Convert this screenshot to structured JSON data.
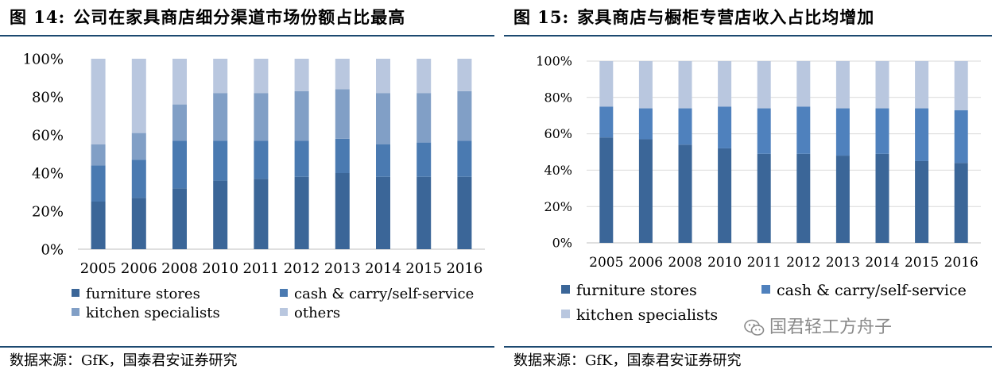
{
  "figures": [
    {
      "number": "图 14:",
      "title": "公司在家具商店细分渠道市场份额占比最高",
      "source": "数据来源：GfK，国泰君安证券研究"
    },
    {
      "number": "图 15:",
      "title": "家具商店与橱柜专营店收入占比均增加",
      "source": "数据来源：GfK，国泰君安证券研究"
    }
  ],
  "watermark": {
    "text": "国君轻工方舟子",
    "icon": "wechat-icon"
  },
  "chart_data": [
    {
      "type": "bar",
      "stacked": true,
      "categories": [
        "2005",
        "2006",
        "2008",
        "2010",
        "2011",
        "2012",
        "2013",
        "2014",
        "2015",
        "2016"
      ],
      "ylim": [
        0,
        100
      ],
      "yticks": [
        "0%",
        "20%",
        "40%",
        "60%",
        "80%",
        "100%"
      ],
      "grid": false,
      "legend": "bottom",
      "series": [
        {
          "name": "furniture stores",
          "color": "#3b6698",
          "values": [
            25,
            27,
            32,
            36,
            37,
            38,
            40,
            38,
            38,
            38
          ]
        },
        {
          "name": "cash & carry/self-service",
          "color": "#4a7ab1",
          "values": [
            19,
            20,
            25,
            21,
            20,
            19,
            18,
            17,
            18,
            19
          ]
        },
        {
          "name": "kitchen specialists",
          "color": "#819fc6",
          "values": [
            11,
            14,
            19,
            25,
            25,
            26,
            26,
            27,
            26,
            26
          ]
        },
        {
          "name": "others",
          "color": "#b9c7df",
          "values": [
            45,
            39,
            24,
            18,
            18,
            17,
            16,
            18,
            18,
            17
          ]
        }
      ]
    },
    {
      "type": "bar",
      "stacked": true,
      "categories": [
        "2005",
        "2006",
        "2008",
        "2010",
        "2011",
        "2012",
        "2013",
        "2014",
        "2015",
        "2016"
      ],
      "ylim": [
        0,
        100
      ],
      "yticks": [
        "0%",
        "20%",
        "40%",
        "60%",
        "80%",
        "100%"
      ],
      "grid": true,
      "legend": "bottom",
      "series": [
        {
          "name": "furniture stores",
          "color": "#3b6698",
          "values": [
            58,
            57,
            54,
            52,
            49,
            49,
            48,
            49,
            45,
            44
          ]
        },
        {
          "name": "cash & carry/self-service",
          "color": "#4f81bd",
          "values": [
            17,
            17,
            20,
            23,
            25,
            26,
            26,
            25,
            29,
            29
          ]
        },
        {
          "name": "kitchen specialists",
          "color": "#b9c7df",
          "values": [
            25,
            26,
            26,
            25,
            26,
            25,
            26,
            26,
            26,
            27
          ]
        }
      ]
    }
  ]
}
